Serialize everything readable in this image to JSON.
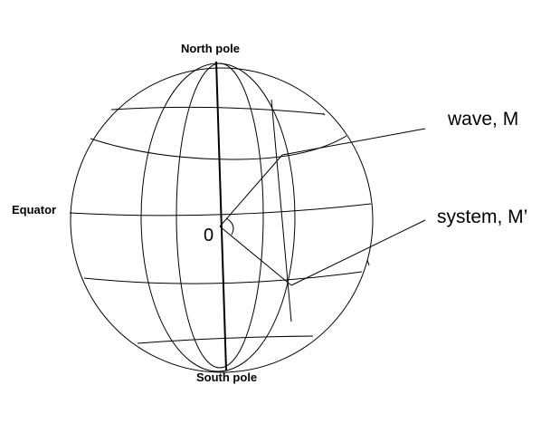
{
  "labels": {
    "north_pole": "North pole",
    "south_pole": "South pole",
    "equator": "Equator",
    "origin": "0",
    "wave": "wave, M",
    "system": "system, M’"
  }
}
